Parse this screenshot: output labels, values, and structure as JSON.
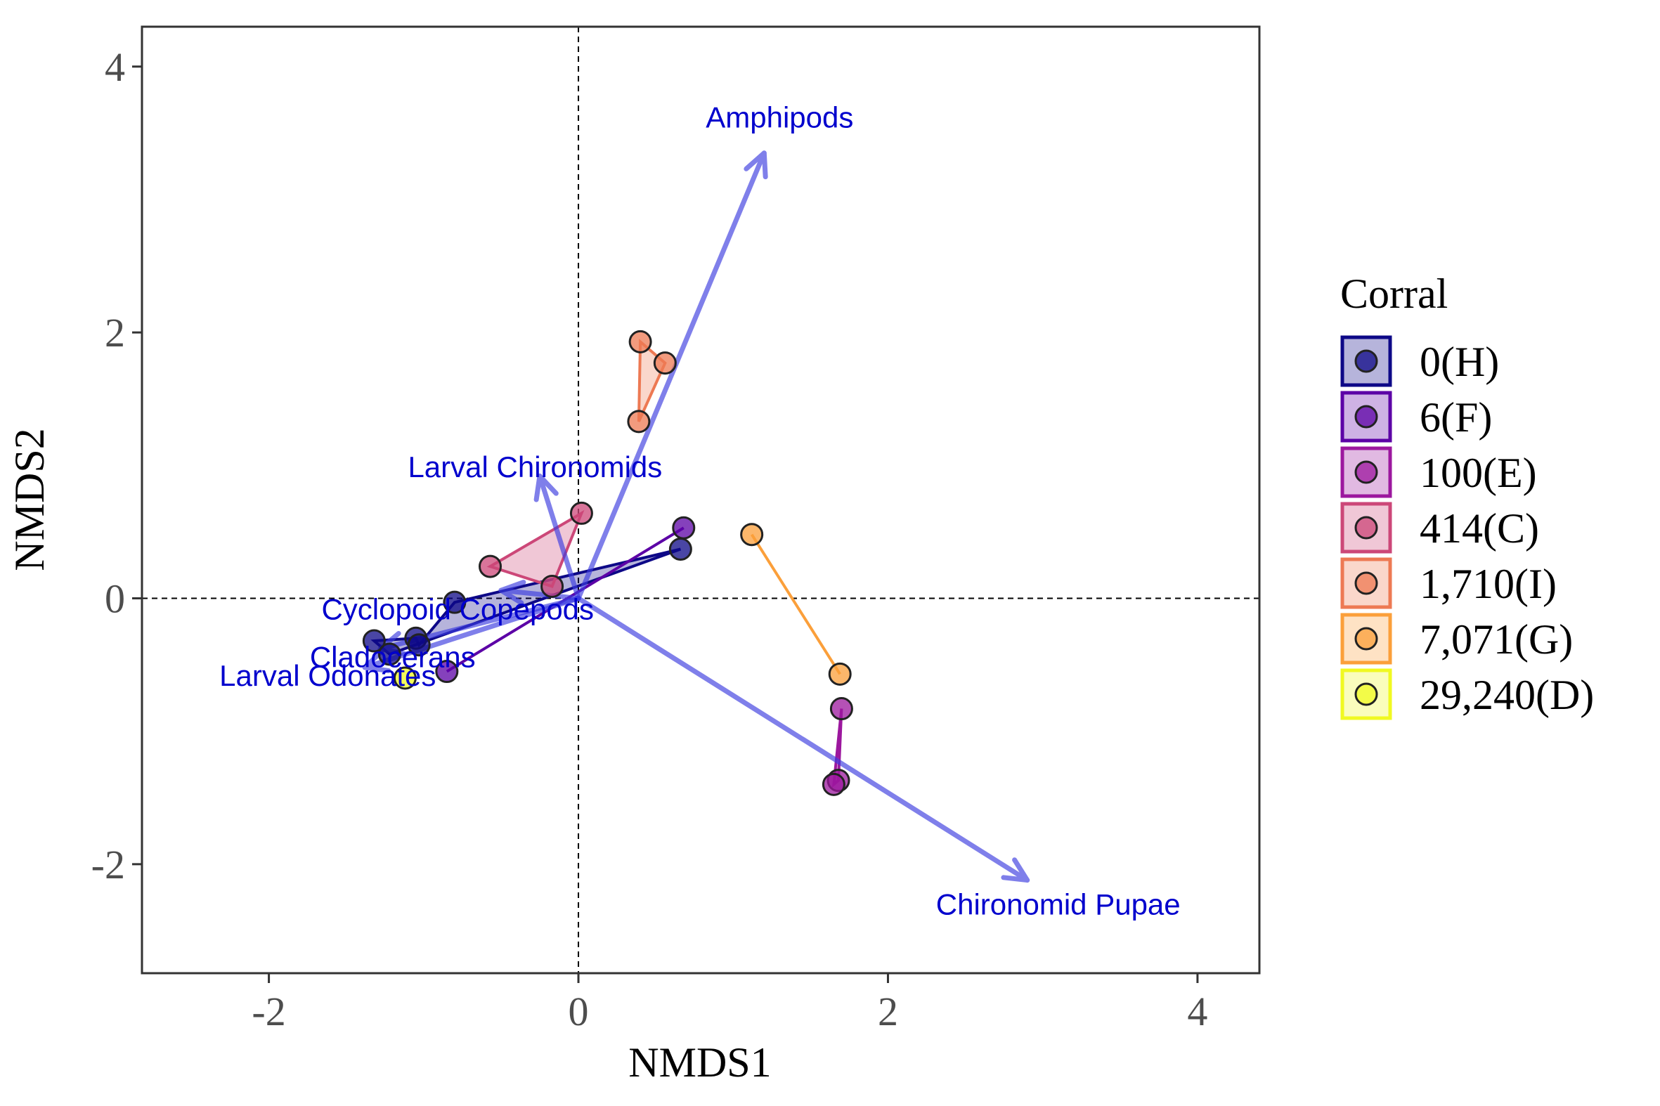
{
  "chart_data": {
    "type": "scatter",
    "xlabel": "NMDS1",
    "ylabel": "NMDS2",
    "xlim": [
      -2.82,
      4.4
    ],
    "ylim": [
      -2.82,
      4.3
    ],
    "xticks": [
      -2,
      0,
      2,
      4
    ],
    "yticks": [
      -2,
      0,
      2,
      4
    ],
    "xtick_labels": [
      "-2",
      "0",
      "2",
      "4"
    ],
    "ytick_labels": [
      "-2",
      "0",
      "2",
      "4"
    ],
    "grid": false,
    "reference_lines": {
      "x": 0,
      "y": 0,
      "style": "dashed"
    },
    "legend": {
      "title": "Corral",
      "position": "right"
    },
    "series": [
      {
        "name": "0(H)",
        "color": "#0d0887",
        "hull": "polygon",
        "points": [
          [
            -1.32,
            -0.32
          ],
          [
            -1.05,
            -0.3
          ],
          [
            -1.03,
            -0.35
          ],
          [
            -0.8,
            -0.03
          ],
          [
            0.66,
            0.37
          ],
          [
            -1.22,
            -0.42
          ]
        ]
      },
      {
        "name": "6(F)",
        "color": "#5c01a6",
        "hull": "polygon",
        "points": [
          [
            -0.85,
            -0.55
          ],
          [
            0.68,
            0.53
          ]
        ]
      },
      {
        "name": "100(E)",
        "color": "#9c179e",
        "hull": "polygon",
        "points": [
          [
            1.7,
            -0.83
          ],
          [
            1.68,
            -1.37
          ],
          [
            1.65,
            -1.4
          ]
        ]
      },
      {
        "name": "414(C)",
        "color": "#cc4778",
        "hull": "polygon",
        "points": [
          [
            -0.57,
            0.24
          ],
          [
            0.02,
            0.64
          ],
          [
            -0.17,
            0.09
          ]
        ]
      },
      {
        "name": "1,710(I)",
        "color": "#ed7953",
        "hull": "polygon",
        "points": [
          [
            0.4,
            1.93
          ],
          [
            0.56,
            1.77
          ],
          [
            0.39,
            1.33
          ]
        ]
      },
      {
        "name": "7,071(G)",
        "color": "#fb9f3a",
        "hull": "polygon",
        "points": [
          [
            1.12,
            0.48
          ],
          [
            1.69,
            -0.57
          ]
        ]
      },
      {
        "name": "29,240(D)",
        "color": "#f0f921",
        "hull": "polygon",
        "points": [
          [
            -1.12,
            -0.6
          ]
        ]
      }
    ],
    "vectors": [
      {
        "name": "Amphipods",
        "x": 1.2,
        "y": 3.35
      },
      {
        "name": "Larval Chironomids",
        "x": -0.25,
        "y": 0.92
      },
      {
        "name": "Cyclopoid Copepods",
        "x": -0.5,
        "y": 0.06
      },
      {
        "name": "Cladocerans",
        "x": -1.28,
        "y": -0.38
      },
      {
        "name": "Larval Odonates",
        "x": -1.38,
        "y": -0.52
      },
      {
        "name": "Chironomid Pupae",
        "x": 2.9,
        "y": -2.12
      }
    ],
    "vector_labels": [
      {
        "name": "Amphipods",
        "x": 1.3,
        "y": 3.6
      },
      {
        "name": "Larval Chironomids",
        "x": -0.28,
        "y": 0.97
      },
      {
        "name": "Cyclopoid Copepods",
        "x": -0.78,
        "y": -0.1
      },
      {
        "name": "Cladocerans",
        "x": -1.2,
        "y": -0.46
      },
      {
        "name": "Larval Odonates",
        "x": -1.62,
        "y": -0.6
      },
      {
        "name": "Chironomid Pupae",
        "x": 3.1,
        "y": -2.32
      }
    ],
    "vector_color": "#3b3be0"
  }
}
